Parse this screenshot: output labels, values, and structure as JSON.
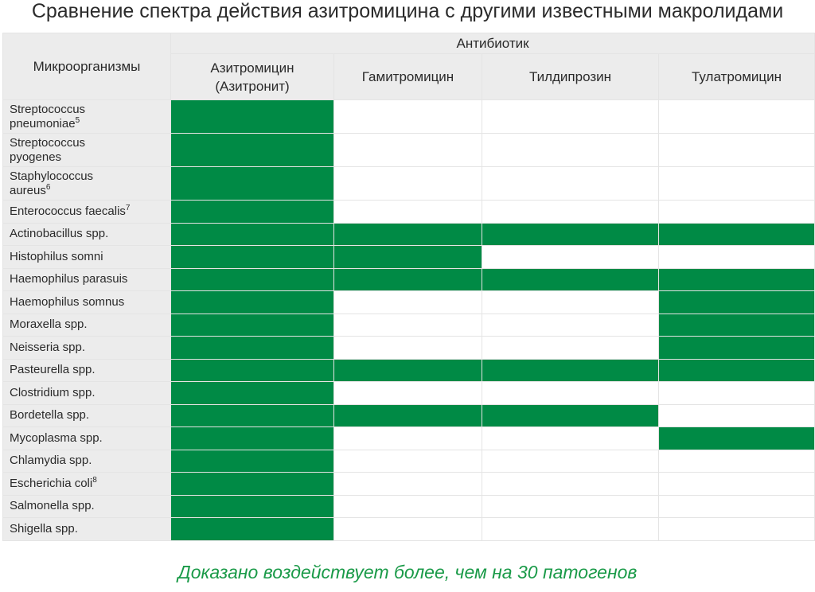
{
  "title": "Сравнение спектра действия азитромицина с другими известными макролидами",
  "header": {
    "microorganisms_label": "Микроорганизмы",
    "antibiotic_label": "Антибиотик",
    "columns": [
      {
        "line1": "Азитромицин",
        "line2": "(Азитронит)"
      },
      {
        "line1": "Гамитромицин",
        "line2": ""
      },
      {
        "line1": "Тилдипрозин",
        "line2": ""
      },
      {
        "line1": "Тулатромицин",
        "line2": ""
      }
    ]
  },
  "colors": {
    "active": "#008a45",
    "header_bg": "#ececec",
    "footer_text": "#1a9a48"
  },
  "rows": [
    {
      "line1": "Streptococcus",
      "line2": "pneumoniae",
      "sup": "5",
      "active": [
        true,
        false,
        false,
        false
      ]
    },
    {
      "line1": "Streptococcus",
      "line2": "pyogenes",
      "sup": "",
      "active": [
        true,
        false,
        false,
        false
      ]
    },
    {
      "line1": "Staphylococcus",
      "line2": "aureus",
      "sup": "6",
      "active": [
        true,
        false,
        false,
        false
      ]
    },
    {
      "line1": "Enterococcus faecalis",
      "line2": "",
      "sup": "7",
      "active": [
        true,
        false,
        false,
        false
      ]
    },
    {
      "line1": "Actinobacillus spp.",
      "line2": "",
      "sup": "",
      "active": [
        true,
        true,
        true,
        true
      ]
    },
    {
      "line1": "Histophilus somni",
      "line2": "",
      "sup": "",
      "active": [
        true,
        true,
        false,
        false
      ]
    },
    {
      "line1": "Haemophilus parasuis",
      "line2": "",
      "sup": "",
      "active": [
        true,
        true,
        true,
        true
      ]
    },
    {
      "line1": "Haemophilus somnus",
      "line2": "",
      "sup": "",
      "active": [
        true,
        false,
        false,
        true
      ]
    },
    {
      "line1": "Moraxella spp.",
      "line2": "",
      "sup": "",
      "active": [
        true,
        false,
        false,
        true
      ]
    },
    {
      "line1": "Neisseria spp.",
      "line2": "",
      "sup": "",
      "active": [
        true,
        false,
        false,
        true
      ]
    },
    {
      "line1": "Pasteurella spp.",
      "line2": "",
      "sup": "",
      "active": [
        true,
        true,
        true,
        true
      ]
    },
    {
      "line1": "Clostridium spp.",
      "line2": "",
      "sup": "",
      "active": [
        true,
        false,
        false,
        false
      ]
    },
    {
      "line1": "Bordetella spp.",
      "line2": "",
      "sup": "",
      "active": [
        true,
        true,
        true,
        false
      ]
    },
    {
      "line1": "Mycoplasma spp.",
      "line2": "",
      "sup": "",
      "active": [
        true,
        false,
        false,
        true
      ]
    },
    {
      "line1": "Chlamydia spp.",
      "line2": "",
      "sup": "",
      "active": [
        true,
        false,
        false,
        false
      ]
    },
    {
      "line1": "Escherichia coli",
      "line2": "",
      "sup": "8",
      "active": [
        true,
        false,
        false,
        false
      ]
    },
    {
      "line1": "Salmonella spp.",
      "line2": "",
      "sup": "",
      "active": [
        true,
        false,
        false,
        false
      ]
    },
    {
      "line1": "Shigella spp.",
      "line2": "",
      "sup": "",
      "active": [
        true,
        false,
        false,
        false
      ]
    }
  ],
  "footer": "Доказано воздействует более, чем на 30 патогенов"
}
